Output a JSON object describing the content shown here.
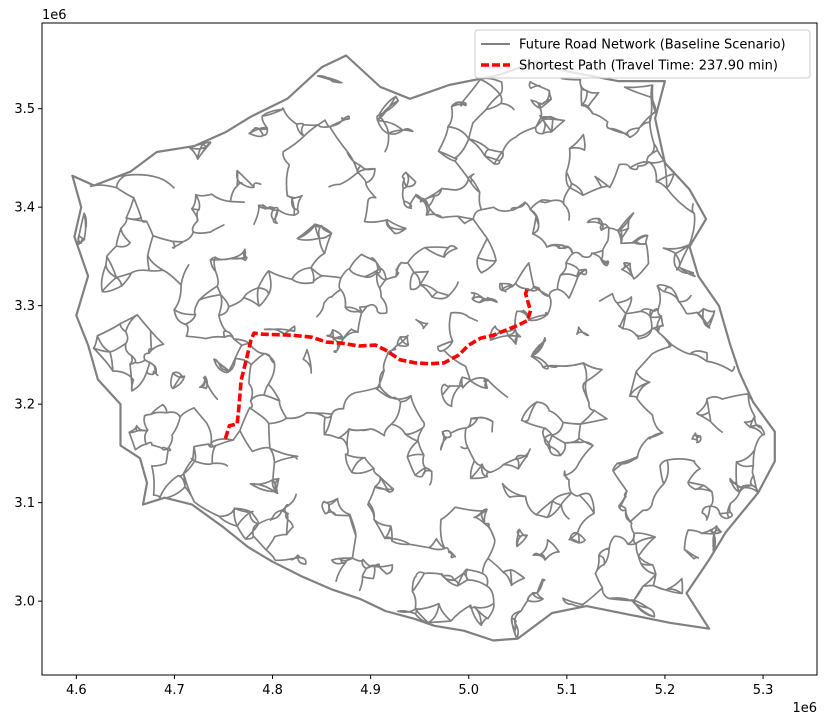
{
  "chart_data": {
    "type": "map",
    "title": "",
    "xlabel": "",
    "ylabel": "",
    "x_offset_label": "1e6",
    "y_offset_label": "1e6",
    "xlim": [
      4.565,
      5.355
    ],
    "ylim": [
      2.925,
      3.587
    ],
    "x_ticks": [
      4.6,
      4.7,
      4.8,
      4.9,
      5.0,
      5.1,
      5.2,
      5.3
    ],
    "x_tick_labels": [
      "4.6",
      "4.7",
      "4.8",
      "4.9",
      "5.0",
      "5.1",
      "5.2",
      "5.3"
    ],
    "y_ticks": [
      3.0,
      3.1,
      3.2,
      3.3,
      3.4,
      3.5
    ],
    "y_tick_labels": [
      "3.0",
      "3.1",
      "3.2",
      "3.3",
      "3.4",
      "3.5"
    ],
    "legend_position": "top-right",
    "grid": false,
    "series": [
      {
        "name": "Future Road Network (Baseline Scenario)",
        "kind": "network",
        "color": "#808080",
        "boundary": [
          [
            4.596,
            3.432
          ],
          [
            4.618,
            3.422
          ],
          [
            4.655,
            3.436
          ],
          [
            4.682,
            3.456
          ],
          [
            4.72,
            3.462
          ],
          [
            4.752,
            3.476
          ],
          [
            4.778,
            3.492
          ],
          [
            4.815,
            3.51
          ],
          [
            4.85,
            3.542
          ],
          [
            4.875,
            3.554
          ],
          [
            4.91,
            3.522
          ],
          [
            4.94,
            3.51
          ],
          [
            4.98,
            3.524
          ],
          [
            5.03,
            3.534
          ],
          [
            5.07,
            3.548
          ],
          [
            5.1,
            3.538
          ],
          [
            5.152,
            3.528
          ],
          [
            5.2,
            3.528
          ],
          [
            5.19,
            3.49
          ],
          [
            5.2,
            3.445
          ],
          [
            5.225,
            3.418
          ],
          [
            5.242,
            3.388
          ],
          [
            5.225,
            3.36
          ],
          [
            5.234,
            3.33
          ],
          [
            5.255,
            3.3
          ],
          [
            5.266,
            3.262
          ],
          [
            5.276,
            3.232
          ],
          [
            5.29,
            3.202
          ],
          [
            5.312,
            3.172
          ],
          [
            5.312,
            3.142
          ],
          [
            5.295,
            3.11
          ],
          [
            5.262,
            3.07
          ],
          [
            5.245,
            3.042
          ],
          [
            5.222,
            3.008
          ],
          [
            5.245,
            2.972
          ],
          [
            5.205,
            2.978
          ],
          [
            5.165,
            2.986
          ],
          [
            5.12,
            2.995
          ],
          [
            5.085,
            2.988
          ],
          [
            5.05,
            2.962
          ],
          [
            5.025,
            2.96
          ],
          [
            4.995,
            2.97
          ],
          [
            4.965,
            2.975
          ],
          [
            4.945,
            2.982
          ],
          [
            4.915,
            2.99
          ],
          [
            4.89,
            3.002
          ],
          [
            4.86,
            3.012
          ],
          [
            4.83,
            3.025
          ],
          [
            4.8,
            3.04
          ],
          [
            4.775,
            3.055
          ],
          [
            4.75,
            3.075
          ],
          [
            4.718,
            3.098
          ],
          [
            4.69,
            3.105
          ],
          [
            4.668,
            3.098
          ],
          [
            4.672,
            3.12
          ],
          [
            4.665,
            3.145
          ],
          [
            4.645,
            3.158
          ],
          [
            4.645,
            3.2
          ],
          [
            4.622,
            3.225
          ],
          [
            4.612,
            3.26
          ],
          [
            4.6,
            3.29
          ],
          [
            4.612,
            3.33
          ],
          [
            4.598,
            3.37
          ],
          [
            4.605,
            3.4
          ],
          [
            4.596,
            3.432
          ]
        ]
      },
      {
        "name": "Shortest Path (Travel Time: 237.90 min)",
        "kind": "path",
        "color": "#ff0000",
        "x": [
          4.752,
          4.756,
          4.764,
          4.766,
          4.768,
          4.774,
          4.778,
          4.781,
          4.79,
          4.82,
          4.84,
          4.855,
          4.87,
          4.888,
          4.905,
          4.915,
          4.93,
          4.945,
          4.96,
          4.975,
          4.99,
          5.0,
          5.012,
          5.025,
          5.04,
          5.05,
          5.06,
          5.063,
          5.06,
          5.058,
          5.06
        ],
        "y": [
          3.165,
          3.178,
          3.18,
          3.2,
          3.224,
          3.248,
          3.265,
          3.272,
          3.271,
          3.27,
          3.268,
          3.263,
          3.262,
          3.259,
          3.26,
          3.255,
          3.245,
          3.242,
          3.241,
          3.242,
          3.25,
          3.26,
          3.267,
          3.27,
          3.276,
          3.28,
          3.285,
          3.295,
          3.305,
          3.312,
          3.318
        ]
      }
    ]
  }
}
